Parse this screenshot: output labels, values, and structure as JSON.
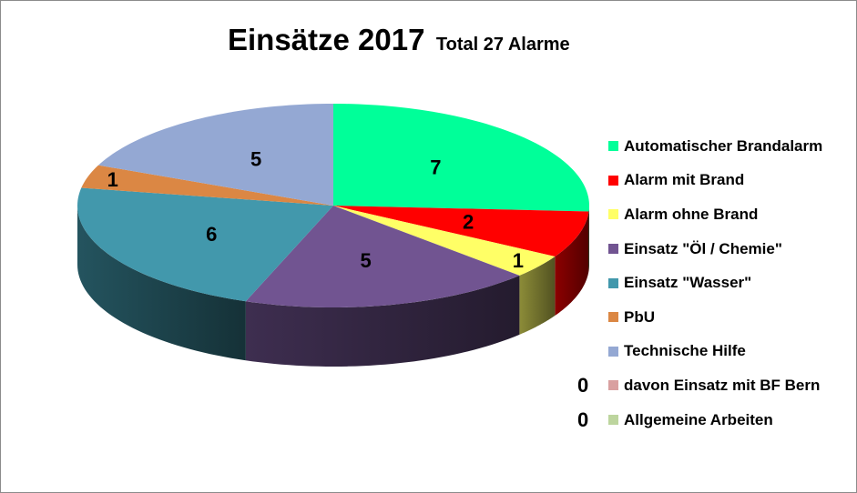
{
  "chart_data": {
    "type": "pie",
    "title": "Einsätze 2017",
    "subtitle": "Total  27 Alarme",
    "categories": [
      "Automatischer Brandalarm",
      "Alarm mit Brand",
      "Alarm ohne Brand",
      "Einsatz \"Öl / Chemie\"",
      "Einsatz \"Wasser\"",
      "PbU",
      "Technische Hilfe",
      "davon Einsatz mit BF Bern",
      "Allgemeine Arbeiten"
    ],
    "values": [
      7,
      2,
      1,
      5,
      6,
      1,
      5,
      0,
      0
    ],
    "colors": [
      "#00ff99",
      "#ff0000",
      "#ffff66",
      "#715491",
      "#4298ac",
      "#db8744",
      "#94a8d3",
      "#d9a0a0",
      "#bdd59e"
    ],
    "data_labels": [
      "7",
      "2",
      "1",
      "5",
      "6",
      "1",
      "5",
      "0",
      "0"
    ],
    "legend_position": "right",
    "style": "3d"
  }
}
